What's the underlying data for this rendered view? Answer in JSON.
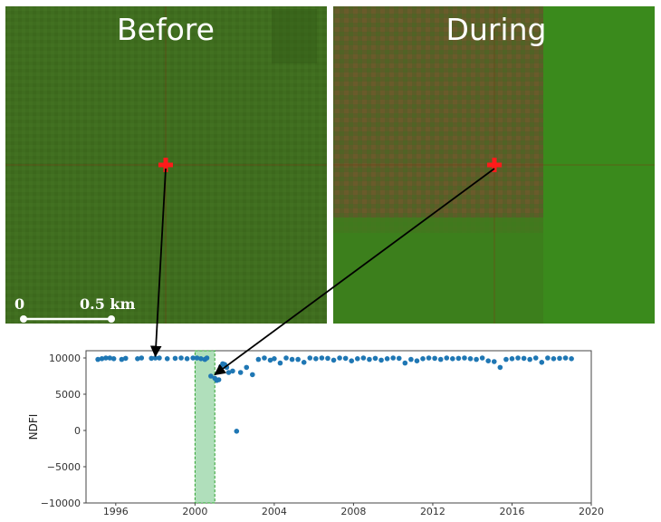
{
  "panels": {
    "before": {
      "title": "Before"
    },
    "during": {
      "title": "During"
    }
  },
  "scale_bar": {
    "start_label": "0",
    "end_label": "0.5 km"
  },
  "colors": {
    "forest": "#3f6d1f",
    "forest_light": "#3a8a1c",
    "clearing": "#6b5a2c",
    "marker": "#ff1a1a",
    "points": "#1f77b4",
    "disturbance_band": "#8fd19e",
    "disturbance_edge": "#2ca02c",
    "arrow": "#000000"
  },
  "chart_data": {
    "type": "scatter",
    "title": "",
    "xlabel": "",
    "ylabel": "NDFI",
    "xlim": [
      1994.5,
      2020
    ],
    "ylim": [
      -10000,
      11000
    ],
    "xticks": [
      1996,
      2000,
      2004,
      2008,
      2012,
      2016,
      2020
    ],
    "yticks": [
      10000,
      5000,
      0,
      -5000,
      -10000
    ],
    "grid": false,
    "disturbance_period": [
      2000.0,
      2001.0
    ],
    "arrow_targets": [
      {
        "panel": "Before",
        "x": 1998.0,
        "y": 10000
      },
      {
        "panel": "During",
        "x": 2001.0,
        "y": 7200
      }
    ],
    "x": [
      1995.1,
      1995.3,
      1995.5,
      1995.7,
      1995.9,
      1996.3,
      1996.5,
      1997.1,
      1997.3,
      1997.8,
      1998.0,
      1998.2,
      1998.6,
      1999.0,
      1999.3,
      1999.6,
      1999.9,
      2000.1,
      2000.3,
      2000.5,
      2000.6,
      2000.8,
      2001.0,
      2001.1,
      2001.2,
      2001.3,
      2001.4,
      2001.5,
      2001.6,
      2001.7,
      2001.9,
      2002.1,
      2002.3,
      2002.6,
      2002.9,
      2003.2,
      2003.5,
      2003.8,
      2004.0,
      2004.3,
      2004.6,
      2004.9,
      2005.2,
      2005.5,
      2005.8,
      2006.1,
      2006.4,
      2006.7,
      2007.0,
      2007.3,
      2007.6,
      2007.9,
      2008.2,
      2008.5,
      2008.8,
      2009.1,
      2009.4,
      2009.7,
      2010.0,
      2010.3,
      2010.6,
      2010.9,
      2011.2,
      2011.5,
      2011.8,
      2012.1,
      2012.4,
      2012.7,
      2013.0,
      2013.3,
      2013.6,
      2013.9,
      2014.2,
      2014.5,
      2014.8,
      2015.1,
      2015.4,
      2015.7,
      2016.0,
      2016.3,
      2016.6,
      2016.9,
      2017.2,
      2017.5,
      2017.8,
      2018.1,
      2018.4,
      2018.7,
      2019.0
    ],
    "y": [
      9800,
      9900,
      10000,
      10000,
      9900,
      9800,
      9950,
      9900,
      10000,
      9950,
      10000,
      10000,
      9900,
      9950,
      10000,
      9900,
      10000,
      10000,
      9900,
      9800,
      10000,
      7500,
      7200,
      6900,
      7000,
      8800,
      9200,
      9100,
      8700,
      8000,
      8200,
      -100,
      8000,
      8700,
      7700,
      9800,
      10000,
      9700,
      9900,
      9300,
      10000,
      9800,
      9800,
      9400,
      10000,
      9900,
      10000,
      9950,
      9700,
      10000,
      9950,
      9600,
      9900,
      10000,
      9800,
      9950,
      9700,
      9900,
      10000,
      9950,
      9300,
      9800,
      9600,
      9900,
      10000,
      9950,
      9800,
      10000,
      9900,
      9950,
      10000,
      9900,
      9800,
      10000,
      9600,
      9500,
      8700,
      9800,
      9900,
      10000,
      9950,
      9800,
      10000,
      9400,
      10000,
      9900,
      9950,
      10000,
      9900
    ]
  }
}
